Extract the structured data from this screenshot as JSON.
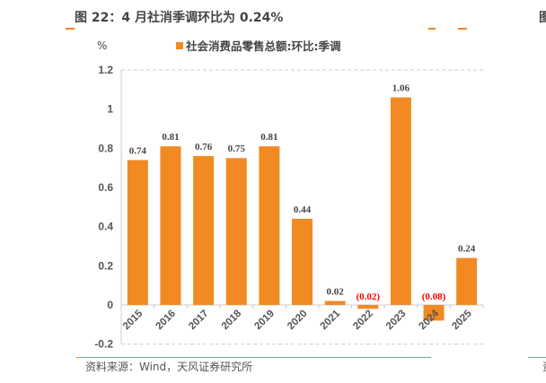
{
  "title": "图 22：4 月社消季调环比为 0.24%",
  "source": "资料来源：Wind，天风证券研究所",
  "next_panel_title_fragment": "图",
  "next_panel_source_fragment": "资",
  "colors": {
    "bar": "#f28a24",
    "negative_label": "#ff0000",
    "rule": "#f0841f"
  },
  "chart_data": {
    "type": "bar",
    "title": "",
    "ylabel": "%",
    "legend": [
      "社会消费品零售总额:环比:季调"
    ],
    "legend_position": "top-center",
    "categories": [
      "2015",
      "2016",
      "2017",
      "2018",
      "2019",
      "2020",
      "2021",
      "2022",
      "2023",
      "2024",
      "2025"
    ],
    "values": [
      0.74,
      0.81,
      0.76,
      0.75,
      0.81,
      0.44,
      0.02,
      -0.02,
      1.06,
      -0.08,
      0.24
    ],
    "data_labels": [
      "0.74",
      "0.81",
      "0.76",
      "0.75",
      "0.81",
      "0.44",
      "0.02",
      "(0.02)",
      "1.06",
      "(0.08)",
      "0.24"
    ],
    "ylim": [
      -0.2,
      1.2
    ],
    "yticks": [
      -0.2,
      0,
      0.2,
      0.4,
      0.6,
      0.8,
      1,
      1.2
    ],
    "ytick_labels": [
      "-0.2",
      "0",
      "0.2",
      "0.4",
      "0.6",
      "0.8",
      "1",
      "1.2"
    ],
    "grid": false
  }
}
